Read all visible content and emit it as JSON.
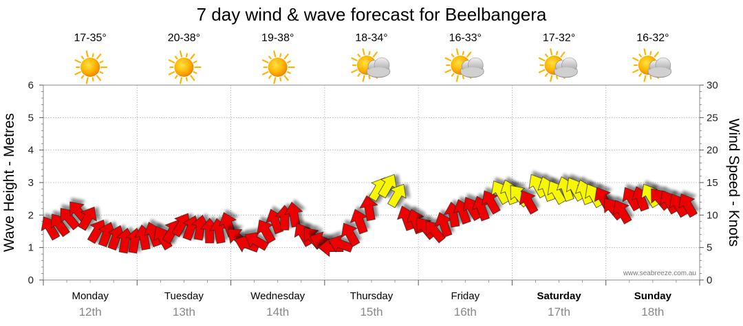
{
  "chart_data": {
    "type": "line",
    "title": "7 day wind & wave forecast for Beelbangera",
    "ylabel_left": "Wave Height - Metres",
    "ylabel_right": "Wind Speed - Knots",
    "ylim_left": [
      0,
      6
    ],
    "ylim_right": [
      0,
      30
    ],
    "left_ticks": [
      "0",
      "1",
      "2",
      "3",
      "4",
      "5",
      "6"
    ],
    "right_ticks": [
      "0",
      "5",
      "10",
      "15",
      "20",
      "25",
      "30"
    ],
    "days": [
      {
        "name": "Monday",
        "date": "12th",
        "temp": "17-35°",
        "weather": "sunny",
        "bold": false
      },
      {
        "name": "Tuesday",
        "date": "13th",
        "temp": "20-38°",
        "weather": "sunny",
        "bold": false
      },
      {
        "name": "Wednesday",
        "date": "14th",
        "temp": "19-38°",
        "weather": "sunny",
        "bold": false
      },
      {
        "name": "Thursday",
        "date": "15th",
        "temp": "18-34°",
        "weather": "partly-cloudy",
        "bold": false
      },
      {
        "name": "Friday",
        "date": "16th",
        "temp": "16-33°",
        "weather": "partly-cloudy",
        "bold": false
      },
      {
        "name": "Saturday",
        "date": "17th",
        "temp": "17-32°",
        "weather": "partly-cloudy",
        "bold": true
      },
      {
        "name": "Sunday",
        "date": "18th",
        "temp": "16-32°",
        "weather": "partly-cloudy",
        "bold": true
      }
    ],
    "series": [
      {
        "name": "Wind Speed (knots) with direction arrows",
        "unit": "knots",
        "x_day": [
          0.0,
          0.1,
          0.2,
          0.3,
          0.4,
          0.5,
          0.6,
          0.7,
          0.8,
          0.9,
          1.0,
          1.1,
          1.2,
          1.3,
          1.4,
          1.5,
          1.6,
          1.7,
          1.8,
          1.9,
          2.0,
          2.1,
          2.2,
          2.3,
          2.4,
          2.5,
          2.6,
          2.7,
          2.8,
          2.9,
          3.0,
          3.1,
          3.2,
          3.3,
          3.4,
          3.5,
          3.6,
          3.7,
          3.8,
          3.9,
          4.0,
          4.1,
          4.2,
          4.3,
          4.4,
          4.5,
          4.6,
          4.7,
          4.8,
          4.9,
          5.0,
          5.1,
          5.2,
          5.3,
          5.4,
          5.5,
          5.6,
          5.7,
          5.8,
          5.9,
          6.0,
          6.1,
          6.2,
          6.3,
          6.4,
          6.5,
          6.6,
          6.7,
          6.8
        ],
        "values": [
          8,
          8.5,
          9.5,
          10.5,
          9.5,
          7.5,
          7,
          6.5,
          6,
          6,
          6.5,
          7,
          6.5,
          7.5,
          8.5,
          8,
          8,
          7.5,
          7.5,
          8.5,
          6.5,
          5.5,
          6,
          7.5,
          9,
          9.5,
          10,
          7,
          6.5,
          6,
          5,
          5.5,
          7,
          9,
          11,
          14,
          14.5,
          13,
          9.5,
          9,
          8,
          7.5,
          8.5,
          10,
          10.5,
          11,
          11,
          12,
          13.5,
          13.5,
          13,
          12,
          14.5,
          14,
          13.5,
          14,
          14,
          13.5,
          13,
          12.5,
          11,
          10.5,
          12.5,
          12.5,
          13,
          12.5,
          12,
          11.5,
          11.5
        ],
        "direction_deg": [
          240,
          235,
          230,
          230,
          300,
          300,
          290,
          290,
          280,
          280,
          260,
          250,
          240,
          300,
          300,
          290,
          280,
          270,
          260,
          250,
          220,
          200,
          210,
          240,
          250,
          270,
          260,
          240,
          230,
          200,
          180,
          200,
          240,
          250,
          260,
          300,
          300,
          300,
          250,
          250,
          230,
          230,
          250,
          260,
          250,
          240,
          250,
          240,
          240,
          250,
          230,
          240,
          240,
          250,
          240,
          250,
          240,
          250,
          240,
          240,
          230,
          240,
          240,
          250,
          240,
          230,
          240,
          240,
          240
        ],
        "color_rule": "red below 13 knots, yellow 13 knots and above"
      }
    ],
    "colors": {
      "low": "#ee0000",
      "high": "#f7f700",
      "grid": "#aaaaaa"
    },
    "watermark": "www.seabreeze.com.au"
  }
}
